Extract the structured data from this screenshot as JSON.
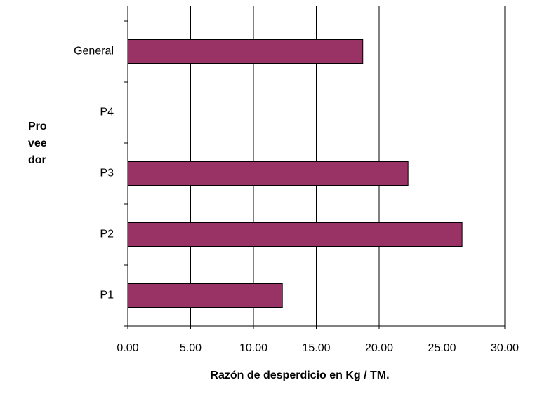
{
  "chart_data": {
    "type": "barh",
    "y_label": [
      "Pro",
      "vee",
      "dor"
    ],
    "x_label": "Razón de desperdicio en Kg / TM.",
    "categories": [
      "General",
      "P4",
      "P3",
      "P2",
      "P1"
    ],
    "values": [
      18.7,
      null,
      22.3,
      26.6,
      12.3
    ],
    "color": "#993366",
    "xlim": [
      0,
      30
    ],
    "xticks": [
      {
        "value": 0,
        "label": "0.00"
      },
      {
        "value": 5,
        "label": "5.00"
      },
      {
        "value": 10,
        "label": "10.00"
      },
      {
        "value": 15,
        "label": "15.00"
      },
      {
        "value": 20,
        "label": "20.00"
      },
      {
        "value": 25,
        "label": "25.00"
      },
      {
        "value": 30,
        "label": "30.00"
      }
    ],
    "grid": true
  }
}
